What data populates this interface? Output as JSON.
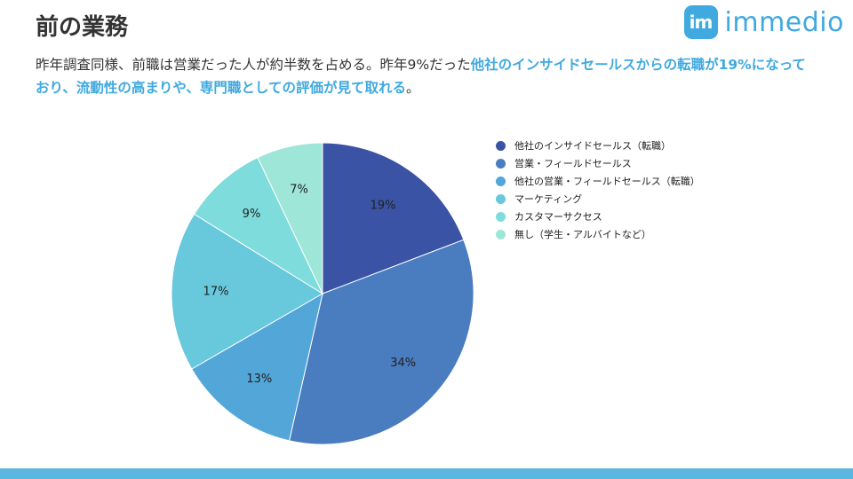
{
  "page": {
    "title": "前の業務",
    "logo_mark": "im",
    "logo_text": "immedio",
    "lead_plain_1": "昨年調査同様、前職は営業だった人が約半数を占める。昨年9%だった",
    "lead_highlight": "他社のインサイドセールスからの転職が19%になっており、流動性の高まりや、専門職としての評価が見て取れる",
    "lead_plain_2": "。"
  },
  "colors": {
    "highlight": "#3fa9e0",
    "footer_bar": "#5bb6e0"
  },
  "chart_data": {
    "type": "pie",
    "title": "",
    "legend_position": "right",
    "start_angle_deg": 0,
    "direction": "clockwise",
    "slices": [
      {
        "label": "他社のインサイドセールス（転職）",
        "value": 19,
        "display": "19%",
        "color": "#3a53a4"
      },
      {
        "label": "営業・フィールドセールス",
        "value": 34,
        "display": "34%",
        "color": "#4a7cc0"
      },
      {
        "label": "他社の営業・フィールドセールス（転職）",
        "value": 13,
        "display": "13%",
        "color": "#52a6d8"
      },
      {
        "label": "マーケティング",
        "value": 17,
        "display": "17%",
        "color": "#68c8dc"
      },
      {
        "label": "カスタマーサクセス",
        "value": 9,
        "display": "9%",
        "color": "#7fdcdc"
      },
      {
        "label": "無し（学生・アルバイトなど）",
        "value": 7,
        "display": "7%",
        "color": "#9ee6d8"
      }
    ]
  }
}
